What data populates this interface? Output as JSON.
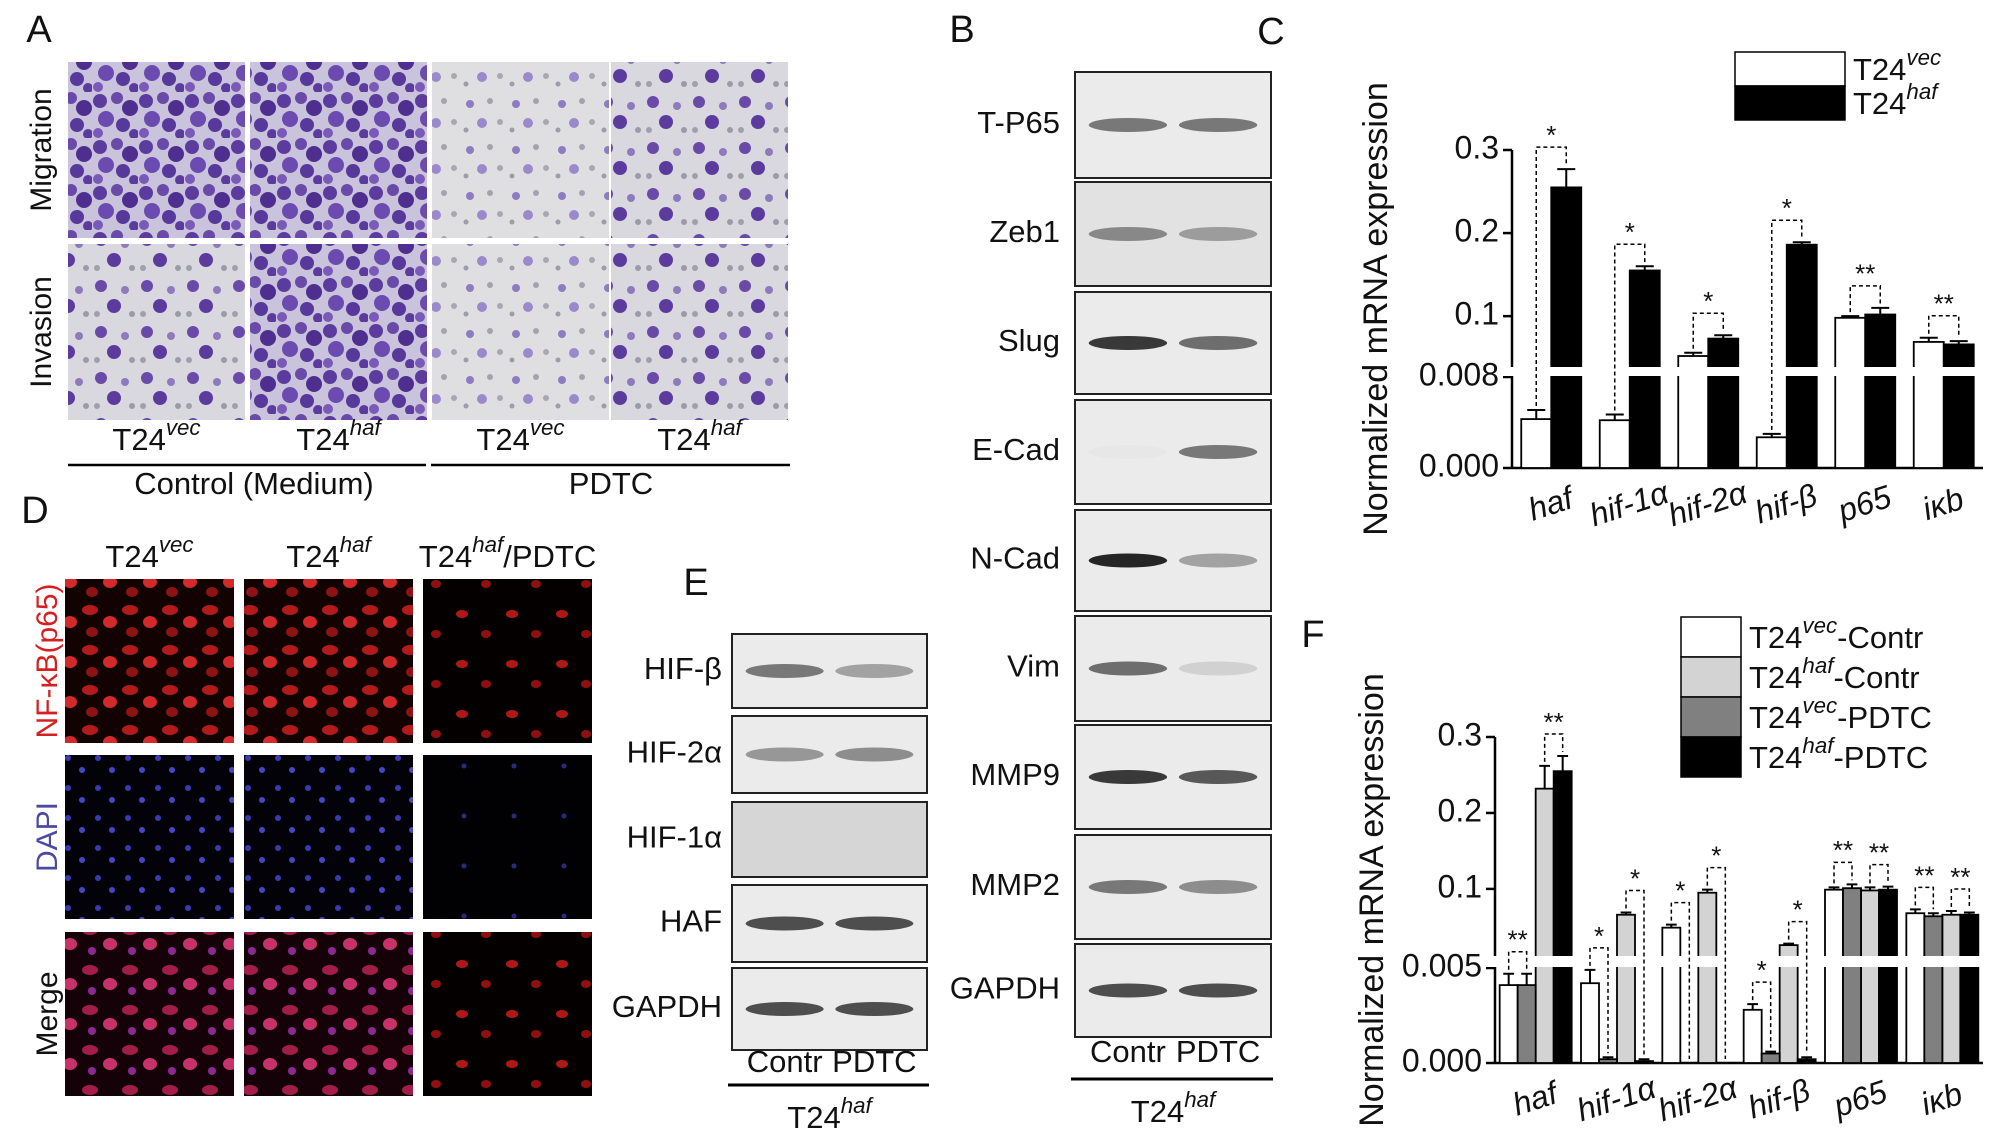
{
  "panel_labels": [
    "A",
    "B",
    "C",
    "D",
    "E",
    "F"
  ],
  "panel_a": {
    "rows": [
      "Migration",
      "Invasion"
    ],
    "columns": [
      {
        "base": "T24",
        "sup": "vec"
      },
      {
        "base": "T24",
        "sup": "haf"
      },
      {
        "base": "T24",
        "sup": "vec"
      },
      {
        "base": "T24",
        "sup": "haf"
      }
    ],
    "groups": [
      "Control (Medium)",
      "PDTC"
    ]
  },
  "panel_d": {
    "columns": [
      {
        "base": "T24",
        "sup": "vec"
      },
      {
        "base": "T24",
        "sup": "haf"
      },
      {
        "base": "T24",
        "sup": "haf",
        "suffix": "/PDTC"
      }
    ],
    "rows": [
      "NF-κB(p65)",
      "DAPI",
      "Merge"
    ]
  },
  "panel_b": {
    "proteins": [
      "T-P65",
      "Zeb1",
      "Slug",
      "E-Cad",
      "N-Cad",
      "Vim",
      "MMP9",
      "MMP2",
      "GAPDH"
    ],
    "lanes": [
      "Contr",
      "PDTC"
    ],
    "group": {
      "base": "T24",
      "sup": "haf"
    }
  },
  "panel_e": {
    "proteins": [
      "HIF-β",
      "HIF-2α",
      "HIF-1α",
      "HAF",
      "GAPDH"
    ],
    "lanes": [
      "Contr",
      "PDTC"
    ],
    "group": {
      "base": "T24",
      "sup": "haf"
    }
  },
  "chart_data": [
    {
      "type": "bar",
      "ylabel": "Normalized mRNA expression",
      "categories": [
        "haf",
        "hif-1α",
        "hif-2α",
        "hif-β",
        "p65",
        "iκb"
      ],
      "series": [
        {
          "name": {
            "base": "T24",
            "sup": "vec"
          },
          "color": "#ffffff",
          "values": [
            0.0043,
            0.0042,
            0.052,
            0.0027,
            0.098,
            0.069
          ],
          "errors": [
            0.0008,
            0.0005,
            0.004,
            0.0003,
            0.002,
            0.005
          ]
        },
        {
          "name": {
            "base": "T24",
            "sup": "haf"
          },
          "color": "#000000",
          "values": [
            0.255,
            0.155,
            0.073,
            0.186,
            0.102,
            0.066
          ],
          "errors": [
            0.022,
            0.005,
            0.004,
            0.003,
            0.008,
            0.004
          ]
        }
      ],
      "significance": [
        "*",
        "*",
        "*",
        "*",
        "**",
        "**"
      ],
      "ylim": [
        0,
        0.3
      ],
      "ybreak": [
        0.008,
        0.04
      ],
      "yticks": [
        {
          "value": 0,
          "label": "0.000"
        },
        {
          "value": 0.008,
          "label": "0.008"
        },
        0.1,
        0.2,
        0.3
      ],
      "legend": "upper right"
    },
    {
      "type": "bar",
      "ylabel": "Normalized mRNA expression",
      "categories": [
        "haf",
        "hif-1α",
        "hif-2α",
        "hif-β",
        "p65",
        "iκb"
      ],
      "series": [
        {
          "name": {
            "base": "T24",
            "sup": "vec",
            "suffix": "-Contr"
          },
          "color": "#ffffff",
          "values": [
            0.0041,
            0.0042,
            0.049,
            0.0028,
            0.099,
            0.068
          ],
          "errors": [
            0.0006,
            0.0007,
            0.004,
            0.0003,
            0.003,
            0.005
          ]
        },
        {
          "name": {
            "base": "T24",
            "sup": "haf",
            "suffix": "-Contr"
          },
          "color": "#d3d3d3",
          "values": [
            0.232,
            0.066,
            0.095,
            0.026,
            0.098,
            0.066
          ],
          "errors": [
            0.03,
            0.003,
            0.004,
            0.002,
            0.004,
            0.005
          ]
        },
        {
          "name": {
            "base": "T24",
            "sup": "vec",
            "suffix": "-PDTC"
          },
          "color": "#808080",
          "values": [
            0.0041,
            0.0002,
            0,
            0.0005,
            0.101,
            0.064
          ],
          "errors": [
            0.0006,
            0.0001,
            0,
            0.0001,
            0.005,
            0.004
          ]
        },
        {
          "name": {
            "base": "T24",
            "sup": "haf",
            "suffix": "-PDTC"
          },
          "color": "#000000",
          "values": [
            0.255,
            0.0001,
            0,
            0.0002,
            0.099,
            0.066
          ],
          "errors": [
            0.02,
            0.0001,
            0,
            0.0001,
            0.004,
            0.003
          ]
        }
      ],
      "significance": [
        [
          "**",
          "**"
        ],
        [
          "*",
          "*"
        ],
        [
          "*",
          "*"
        ],
        [
          "*",
          "*"
        ],
        [
          "**",
          "**"
        ],
        [
          "**",
          "**"
        ]
      ],
      "ylim": [
        0,
        0.3
      ],
      "ybreak": [
        0.005,
        0.013
      ],
      "yticks": [
        {
          "value": 0,
          "label": "0.000"
        },
        {
          "value": 0.005,
          "label": "0.005"
        },
        0.1,
        0.2,
        0.3
      ],
      "legend": "upper right"
    }
  ]
}
